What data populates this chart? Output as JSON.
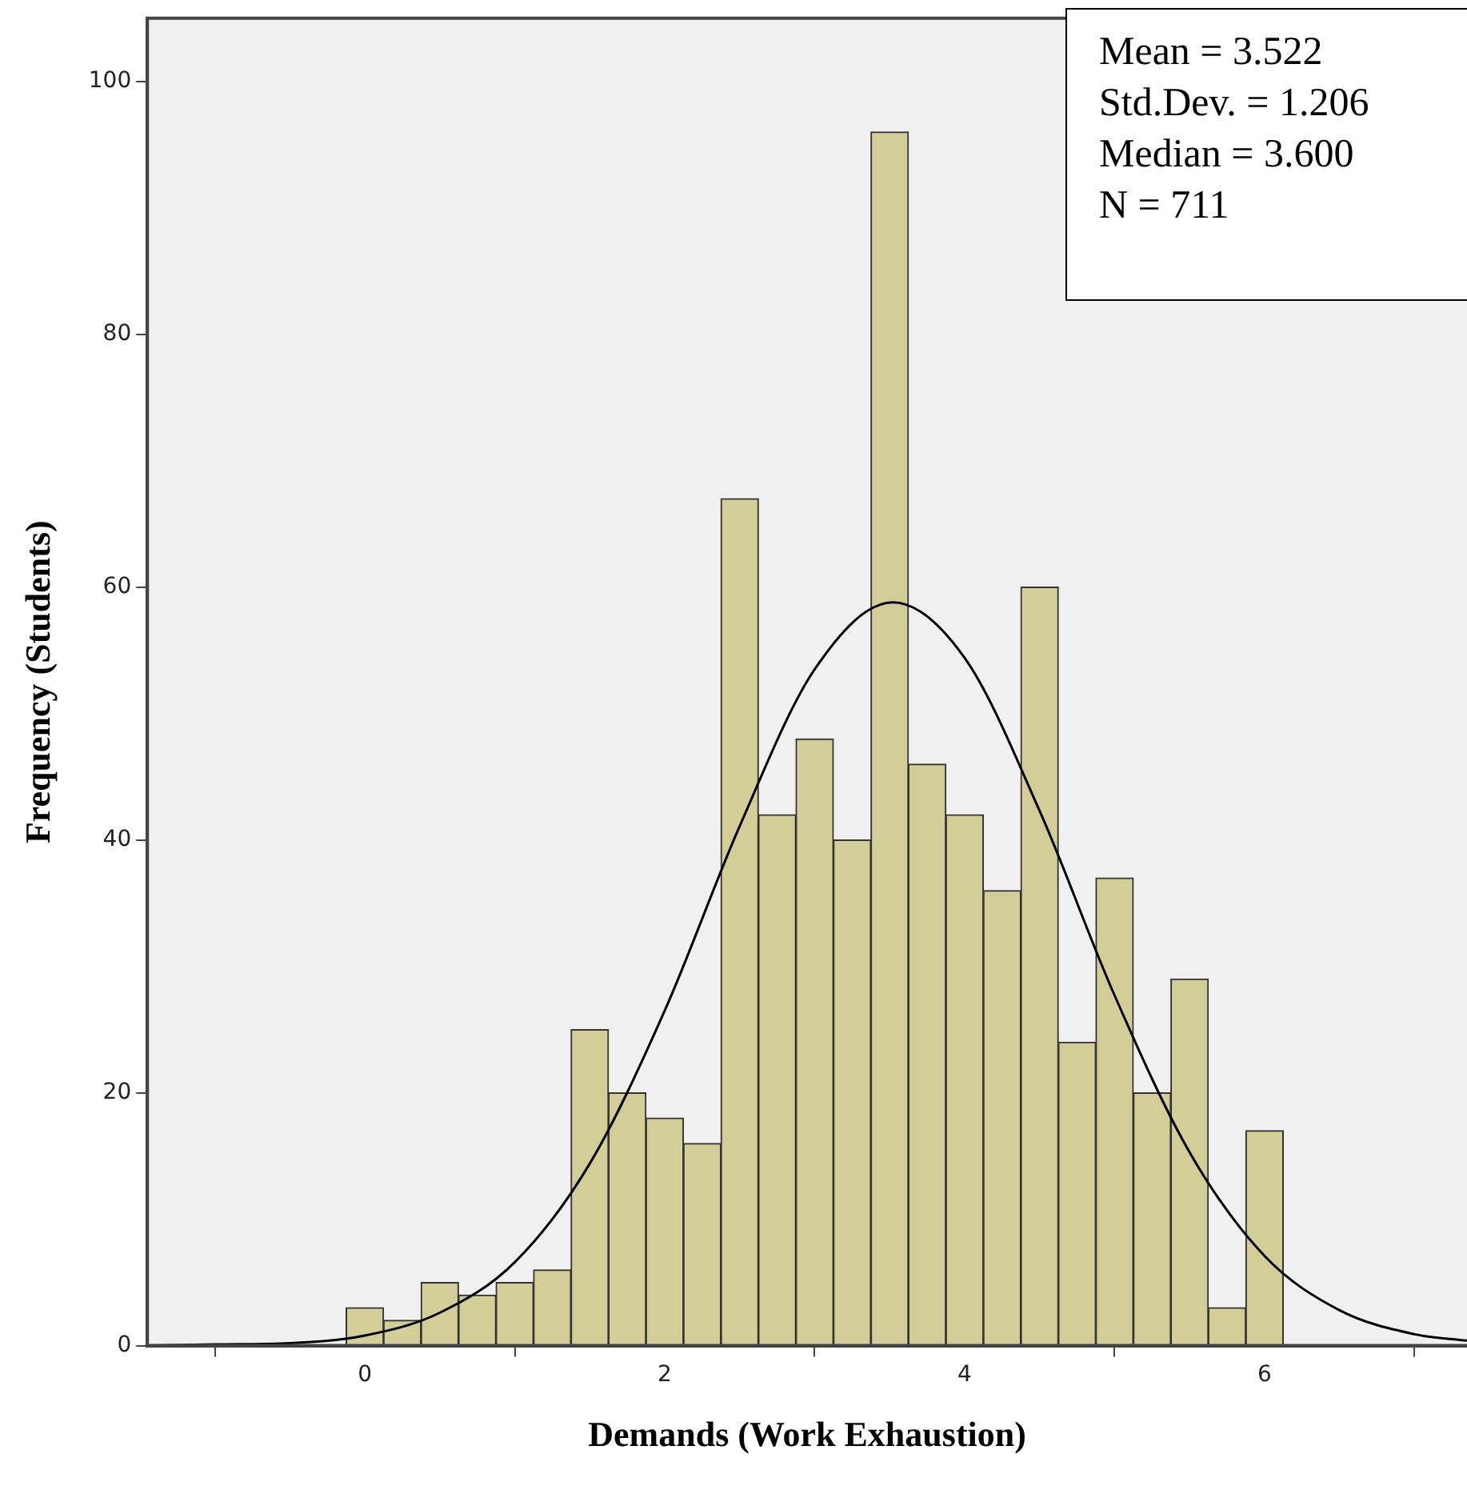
{
  "chart_data": {
    "type": "histogram",
    "xlabel": "Demands (Work Exhaustion)",
    "ylabel": "Frequency (Students)",
    "bins": [
      -0.125,
      0.125,
      0.375,
      0.625,
      0.875,
      1.125,
      1.375,
      1.625,
      1.875,
      2.125,
      2.375,
      2.625,
      2.875,
      3.125,
      3.375,
      3.625,
      3.875,
      4.125,
      4.375,
      4.625,
      4.875,
      5.125,
      5.375,
      5.625,
      5.875,
      6.125
    ],
    "values": [
      3,
      2,
      5,
      4,
      5,
      6,
      25,
      20,
      18,
      16,
      67,
      42,
      48,
      40,
      96,
      46,
      42,
      36,
      60,
      24,
      37,
      20,
      29,
      3,
      17
    ],
    "color": "#d3ce97",
    "series": [
      {
        "type": "line",
        "color": "#000000",
        "x": [
          -1.45,
          -1,
          -0.5,
          0,
          0.5,
          1,
          1.5,
          2,
          2.5,
          3,
          3.522,
          4,
          4.5,
          5,
          5.5,
          6,
          6.5,
          7,
          7.35
        ],
        "values": [
          0,
          0.1,
          0.2,
          0.8,
          2.6,
          6.6,
          14.4,
          26.5,
          41.1,
          53.5,
          58.8,
          54.4,
          42.3,
          27.7,
          15.3,
          7.1,
          2.8,
          0.9,
          0.4
        ]
      }
    ],
    "marker": "none",
    "grid": false,
    "legend": false,
    "xlim": [
      -1.45,
      7.35
    ],
    "xticks": [
      0,
      2,
      4,
      6
    ],
    "ylim": [
      0,
      105
    ],
    "yticks": [
      0,
      20,
      40,
      60,
      80,
      100
    ],
    "annotations": [
      "Mean = 3.522",
      "Std.Dev. = 1.206",
      "Median = 3.600",
      "N = 711"
    ]
  }
}
